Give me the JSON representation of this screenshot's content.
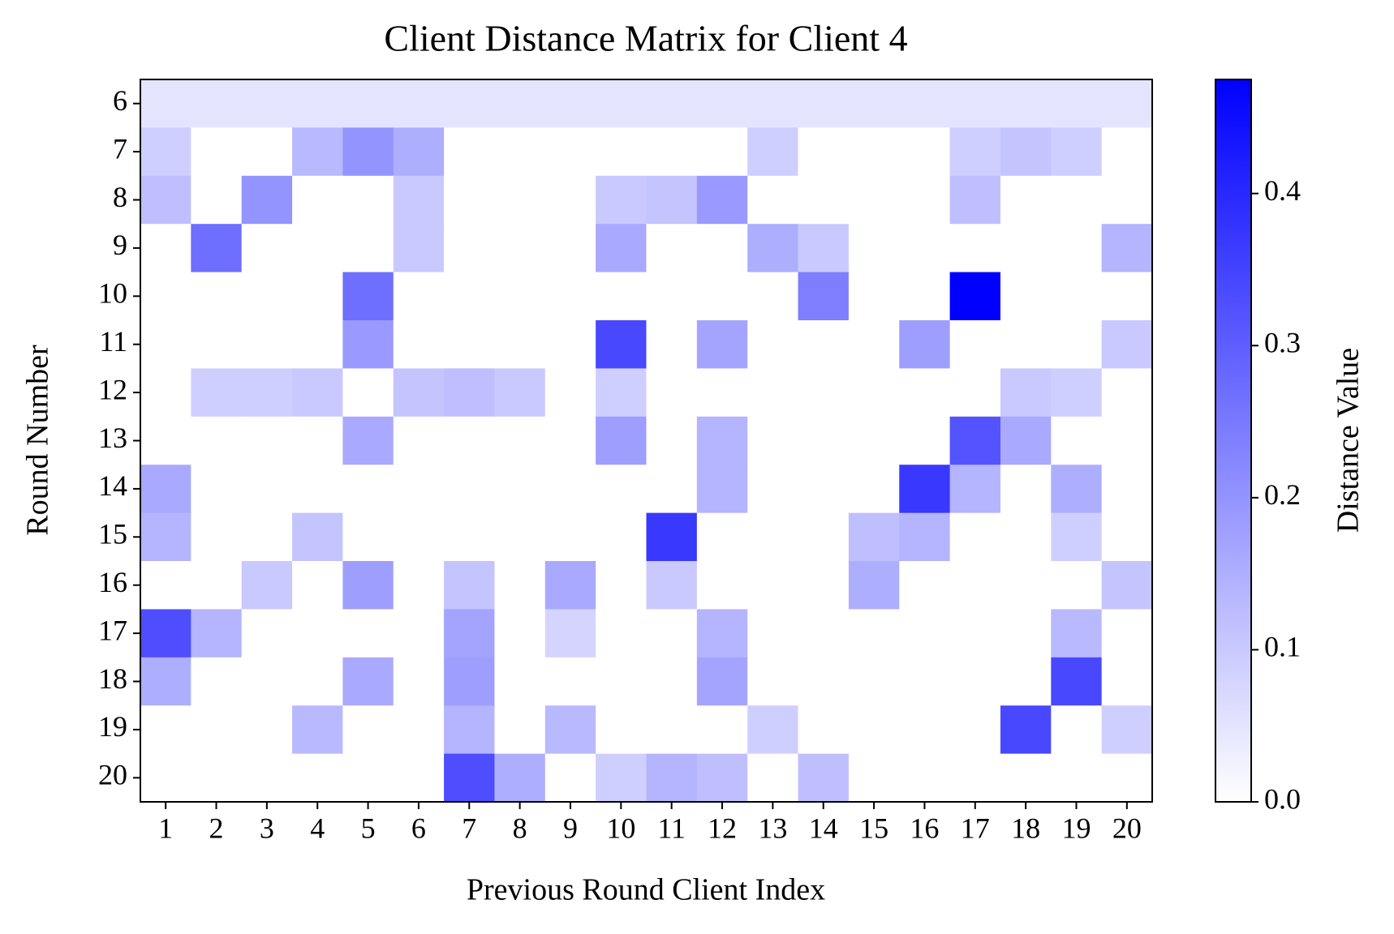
{
  "chart_data": {
    "type": "heatmap",
    "title": "Client Distance Matrix for Client 4",
    "x_label": "Previous Round Client Index",
    "y_label": "Round Number",
    "colorbar_label": "Distance Value",
    "x_categories": [
      1,
      2,
      3,
      4,
      5,
      6,
      7,
      8,
      9,
      10,
      11,
      12,
      13,
      14,
      15,
      16,
      17,
      18,
      19,
      20
    ],
    "y_categories": [
      6,
      7,
      8,
      9,
      10,
      11,
      12,
      13,
      14,
      15,
      16,
      17,
      18,
      19,
      20
    ],
    "colormap": [
      "#ffffff",
      "#0000ff"
    ],
    "clim": [
      0,
      0.475
    ],
    "cticks": [
      {
        "value": 0,
        "label": "0.0"
      },
      0.1,
      0.2,
      0.3,
      0.4
    ],
    "z": [
      [
        0.05,
        0.05,
        0.05,
        0.05,
        0.05,
        0.05,
        0.05,
        0.05,
        0.05,
        0.05,
        0.05,
        0.05,
        0.05,
        0.05,
        0.05,
        0.05,
        0.05,
        0.05,
        0.05,
        0.05
      ],
      [
        0.09,
        0,
        0,
        0.13,
        0.2,
        0.15,
        0,
        0,
        0,
        0,
        0,
        0,
        0.09,
        0,
        0,
        0,
        0.09,
        0.11,
        0.09,
        0
      ],
      [
        0.12,
        0,
        0.2,
        0,
        0,
        0.1,
        0,
        0,
        0,
        0.1,
        0.11,
        0.19,
        0,
        0,
        0,
        0,
        0.12,
        0,
        0,
        0
      ],
      [
        0,
        0.27,
        0,
        0,
        0,
        0.1,
        0,
        0,
        0,
        0.16,
        0,
        0,
        0.15,
        0.1,
        0,
        0,
        0,
        0,
        0,
        0.14
      ],
      [
        0,
        0,
        0,
        0,
        0.27,
        0,
        0,
        0,
        0,
        0,
        0,
        0,
        0,
        0.24,
        0,
        0,
        0.475,
        0,
        0,
        0
      ],
      [
        0,
        0,
        0,
        0,
        0.19,
        0,
        0,
        0,
        0,
        0.34,
        0,
        0.17,
        0,
        0,
        0,
        0.18,
        0,
        0,
        0,
        0.1
      ],
      [
        0,
        0.09,
        0.09,
        0.1,
        0,
        0.11,
        0.12,
        0.1,
        0,
        0.09,
        0,
        0,
        0,
        0,
        0,
        0,
        0,
        0.1,
        0.09,
        0
      ],
      [
        0,
        0,
        0,
        0,
        0.16,
        0,
        0,
        0,
        0,
        0.18,
        0,
        0.14,
        0,
        0,
        0,
        0,
        0.32,
        0.16,
        0,
        0
      ],
      [
        0.16,
        0,
        0,
        0,
        0,
        0,
        0,
        0,
        0,
        0,
        0,
        0.14,
        0,
        0,
        0,
        0.37,
        0.14,
        0,
        0.15,
        0
      ],
      [
        0.14,
        0,
        0,
        0.11,
        0,
        0,
        0,
        0,
        0,
        0,
        0.37,
        0,
        0,
        0,
        0.12,
        0.14,
        0,
        0,
        0.09,
        0
      ],
      [
        0,
        0,
        0.1,
        0,
        0.18,
        0,
        0.11,
        0,
        0.16,
        0,
        0.1,
        0,
        0,
        0,
        0.15,
        0,
        0,
        0,
        0,
        0.11
      ],
      [
        0.33,
        0.14,
        0,
        0,
        0,
        0,
        0.17,
        0,
        0.08,
        0,
        0,
        0.14,
        0,
        0,
        0,
        0,
        0,
        0,
        0.13,
        0
      ],
      [
        0.15,
        0,
        0,
        0,
        0.16,
        0,
        0.18,
        0,
        0,
        0,
        0,
        0.17,
        0,
        0,
        0,
        0,
        0,
        0,
        0.34,
        0
      ],
      [
        0,
        0,
        0,
        0.13,
        0,
        0,
        0.14,
        0,
        0.13,
        0,
        0,
        0,
        0.09,
        0,
        0,
        0,
        0,
        0.34,
        0,
        0.09
      ],
      [
        0,
        0,
        0,
        0,
        0,
        0,
        0.33,
        0.15,
        0,
        0.09,
        0.14,
        0.12,
        0,
        0.12,
        0,
        0,
        0,
        0,
        0,
        0
      ]
    ]
  }
}
